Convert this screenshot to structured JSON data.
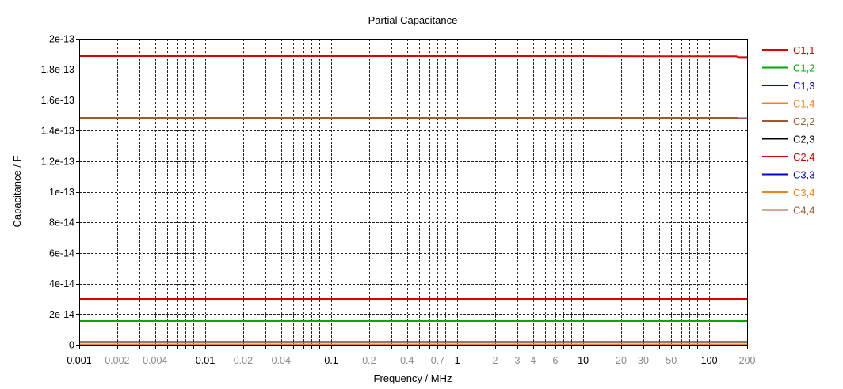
{
  "chart_data": {
    "type": "line",
    "title": "Partial Capacitance",
    "xlabel": "Frequency / MHz",
    "ylabel": "Capacitance / F",
    "xscale": "log",
    "xlim": [
      0.001,
      200
    ],
    "ylim": [
      0,
      2e-13
    ],
    "grid": true,
    "legend_position": "right",
    "x_ticks": [
      {
        "value": 0.001,
        "label": "0.001",
        "major": true
      },
      {
        "value": 0.002,
        "label": "0.002",
        "major": false
      },
      {
        "value": 0.004,
        "label": "0.004",
        "major": false
      },
      {
        "value": 0.01,
        "label": "0.01",
        "major": true
      },
      {
        "value": 0.02,
        "label": "0.02",
        "major": false
      },
      {
        "value": 0.04,
        "label": "0.04",
        "major": false
      },
      {
        "value": 0.1,
        "label": "0.1",
        "major": true
      },
      {
        "value": 0.2,
        "label": "0.2",
        "major": false
      },
      {
        "value": 0.4,
        "label": "0.4",
        "major": false
      },
      {
        "value": 0.7,
        "label": "0.7",
        "major": false
      },
      {
        "value": 1,
        "label": "1",
        "major": true
      },
      {
        "value": 2,
        "label": "2",
        "major": false
      },
      {
        "value": 3,
        "label": "3",
        "major": false
      },
      {
        "value": 4,
        "label": "4",
        "major": false
      },
      {
        "value": 6,
        "label": "6",
        "major": false
      },
      {
        "value": 10,
        "label": "10",
        "major": true
      },
      {
        "value": 20,
        "label": "20",
        "major": false
      },
      {
        "value": 30,
        "label": "30",
        "major": false
      },
      {
        "value": 50,
        "label": "50",
        "major": false
      },
      {
        "value": 100,
        "label": "100",
        "major": true
      },
      {
        "value": 200,
        "label": "200",
        "major": false
      }
    ],
    "y_ticks": [
      {
        "value": 2e-13,
        "label": "2e-13"
      },
      {
        "value": 1.8e-13,
        "label": "1.8e-13"
      },
      {
        "value": 1.6e-13,
        "label": "1.6e-13"
      },
      {
        "value": 1.4e-13,
        "label": "1.4e-13"
      },
      {
        "value": 1.2e-13,
        "label": "1.2e-13"
      },
      {
        "value": 1e-13,
        "label": "1e-13"
      },
      {
        "value": 8e-14,
        "label": "8e-14"
      },
      {
        "value": 6e-14,
        "label": "6e-14"
      },
      {
        "value": 4e-14,
        "label": "4e-14"
      },
      {
        "value": 2e-14,
        "label": "2e-14"
      },
      {
        "value": 0,
        "label": "0"
      }
    ],
    "x": [
      0.001,
      0.01,
      0.1,
      1,
      10,
      40,
      100,
      165,
      170,
      200
    ],
    "series": [
      {
        "name": "C1,1",
        "color": "#dd0000",
        "values": [
          1.886e-13,
          1.886e-13,
          1.886e-13,
          1.886e-13,
          1.886e-13,
          1.885e-13,
          1.885e-13,
          1.885e-13,
          1.879e-13,
          1.879e-13
        ]
      },
      {
        "name": "C1,2",
        "color": "#00a800",
        "values": [
          1.55e-14,
          1.55e-14,
          1.55e-14,
          1.55e-14,
          1.55e-14,
          1.55e-14,
          1.55e-14,
          1.55e-14,
          1.55e-14,
          1.55e-14
        ]
      },
      {
        "name": "C1,3",
        "color": "#0000cc",
        "values": [
          1.8e-15,
          1.8e-15,
          1.8e-15,
          1.8e-15,
          1.8e-15,
          1.8e-15,
          1.8e-15,
          1.8e-15,
          1.8e-15,
          1.8e-15
        ]
      },
      {
        "name": "C1,4",
        "color": "#f08418",
        "values": [
          2e-16,
          2e-16,
          2e-16,
          2e-16,
          2e-16,
          2e-16,
          2e-16,
          2e-16,
          2e-16,
          2e-16
        ]
      },
      {
        "name": "C2,2",
        "color": "#a05a32",
        "values": [
          1.483e-13,
          1.483e-13,
          1.483e-13,
          1.483e-13,
          1.483e-13,
          1.483e-13,
          1.483e-13,
          1.483e-13,
          1.48e-13,
          1.48e-13
        ]
      },
      {
        "name": "C2,3",
        "color": "#000000",
        "values": [
          1.8e-15,
          1.8e-15,
          1.8e-15,
          1.8e-15,
          1.8e-15,
          1.8e-15,
          1.8e-15,
          1.8e-15,
          1.8e-15,
          1.8e-15
        ]
      },
      {
        "name": "C2,4",
        "color": "#dd0000",
        "values": [
          3e-14,
          3e-14,
          3e-14,
          3e-14,
          3e-14,
          3e-14,
          3e-14,
          3e-14,
          3e-14,
          3e-14
        ]
      },
      {
        "name": "C3,3",
        "color": "#0000cc",
        "values": [
          1.483e-13,
          1.483e-13,
          1.483e-13,
          1.483e-13,
          1.483e-13,
          1.483e-13,
          1.483e-13,
          1.483e-13,
          1.48e-13,
          1.48e-13
        ]
      },
      {
        "name": "C3,4",
        "color": "#f08418",
        "values": [
          2e-16,
          2e-16,
          2e-16,
          2e-16,
          2e-16,
          2e-16,
          2e-16,
          2e-16,
          2e-16,
          2e-16
        ]
      },
      {
        "name": "C4,4",
        "color": "#a05a32",
        "values": [
          1.483e-13,
          1.483e-13,
          1.483e-13,
          1.483e-13,
          1.483e-13,
          1.483e-13,
          1.483e-13,
          1.483e-13,
          1.48e-13,
          1.48e-13
        ]
      }
    ]
  }
}
